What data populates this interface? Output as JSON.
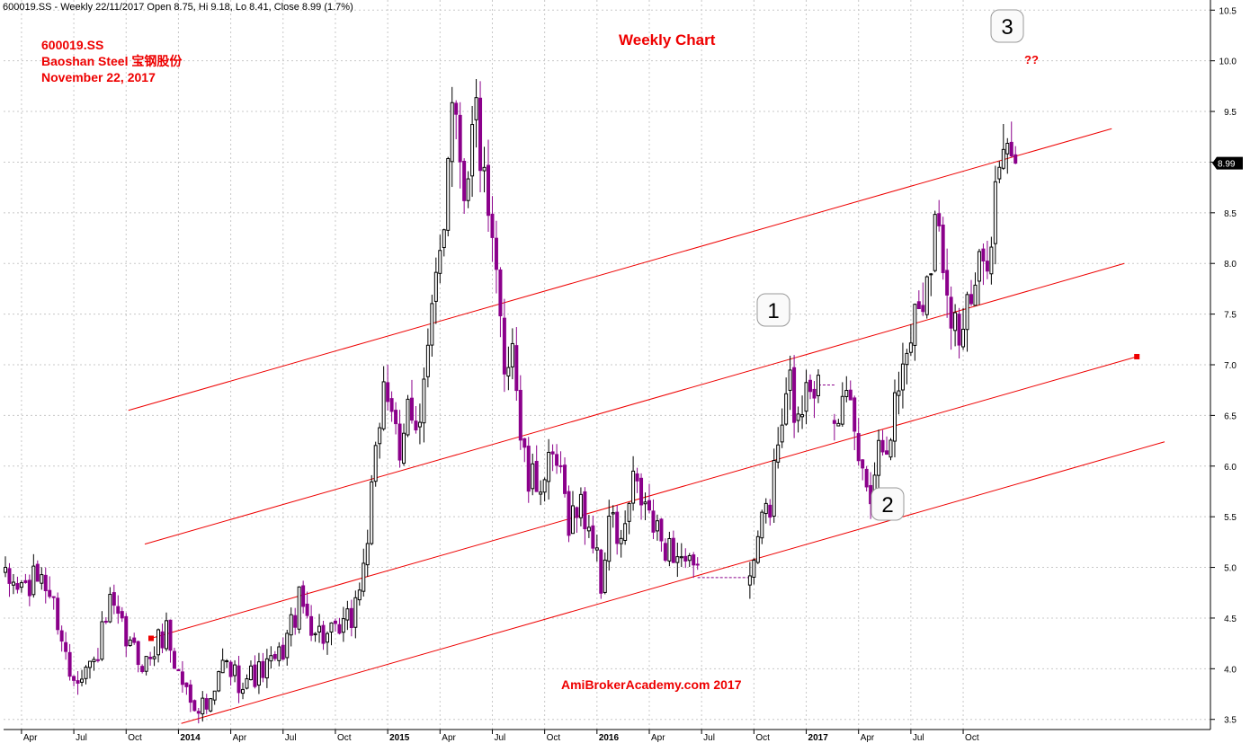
{
  "header": {
    "info": "600019.SS - Weekly 22/11/2017 Open 8.75, Hi 9.18, Lo 8.41, Close 8.99 (1.7%)"
  },
  "annotations": {
    "ticker": "600019.SS",
    "company": "Baoshan Steel 宝钢股份",
    "date": "November 22, 2017",
    "chart_title": "Weekly Chart",
    "watermark": "AmiBrokerAcademy.com 2017",
    "question": "??",
    "marker_1": "1",
    "marker_2": "2",
    "marker_3": "3",
    "last_price": "8.99"
  },
  "colors": {
    "channel": "#ee0000",
    "bear_candle": "#8b008b",
    "bull_candle": "#000000",
    "grid": "#c8c8c8"
  },
  "chart_data": {
    "type": "candlestick",
    "y_ticks": [
      "3.5",
      "4.0",
      "4.5",
      "5.0",
      "5.5",
      "6.0",
      "6.5",
      "7.0",
      "7.5",
      "8.0",
      "8.5",
      "9.0",
      "9.5",
      "10.0",
      "10.5"
    ],
    "ylim": [
      3.4,
      10.6
    ],
    "x_ticks": [
      {
        "label": "Apr",
        "i": 4,
        "bold": false
      },
      {
        "label": "Jul",
        "i": 17,
        "bold": false
      },
      {
        "label": "Oct",
        "i": 30,
        "bold": false
      },
      {
        "label": "2014",
        "i": 43,
        "bold": true
      },
      {
        "label": "Apr",
        "i": 56,
        "bold": false
      },
      {
        "label": "Jul",
        "i": 69,
        "bold": false
      },
      {
        "label": "Oct",
        "i": 82,
        "bold": false
      },
      {
        "label": "2015",
        "i": 95,
        "bold": true
      },
      {
        "label": "Apr",
        "i": 108,
        "bold": false
      },
      {
        "label": "Jul",
        "i": 121,
        "bold": false
      },
      {
        "label": "Oct",
        "i": 134,
        "bold": false
      },
      {
        "label": "2016",
        "i": 147,
        "bold": true
      },
      {
        "label": "Apr",
        "i": 160,
        "bold": false
      },
      {
        "label": "Jul",
        "i": 173,
        "bold": false
      },
      {
        "label": "Oct",
        "i": 186,
        "bold": false
      },
      {
        "label": "2017",
        "i": 199,
        "bold": true
      },
      {
        "label": "Apr",
        "i": 212,
        "bold": false
      },
      {
        "label": "Jul",
        "i": 225,
        "bold": false
      },
      {
        "label": "Oct",
        "i": 238,
        "bold": false
      }
    ],
    "weeks": 252,
    "halt_periods": [
      [
        172,
        185
      ],
      [
        202,
        206
      ]
    ],
    "close_anchors": [
      [
        0,
        4.85
      ],
      [
        6,
        4.8
      ],
      [
        9,
        4.95
      ],
      [
        13,
        4.5
      ],
      [
        16,
        3.95
      ],
      [
        22,
        4.05
      ],
      [
        26,
        4.6
      ],
      [
        31,
        4.2
      ],
      [
        35,
        4.05
      ],
      [
        40,
        4.4
      ],
      [
        42,
        4.05
      ],
      [
        46,
        3.7
      ],
      [
        51,
        3.6
      ],
      [
        54,
        4.05
      ],
      [
        58,
        3.9
      ],
      [
        63,
        3.95
      ],
      [
        68,
        4.1
      ],
      [
        73,
        4.65
      ],
      [
        78,
        4.35
      ],
      [
        82,
        4.3
      ],
      [
        86,
        4.5
      ],
      [
        89,
        5.0
      ],
      [
        92,
        6.0
      ],
      [
        94,
        6.9
      ],
      [
        96,
        6.6
      ],
      [
        98,
        5.9
      ],
      [
        100,
        6.6
      ],
      [
        103,
        6.5
      ],
      [
        106,
        7.4
      ],
      [
        109,
        8.5
      ],
      [
        111,
        9.8
      ],
      [
        114,
        8.8
      ],
      [
        117,
        9.5
      ],
      [
        120,
        8.3
      ],
      [
        122,
        7.8
      ],
      [
        124,
        7.0
      ],
      [
        126,
        7.3
      ],
      [
        128,
        6.3
      ],
      [
        130,
        5.8
      ],
      [
        134,
        5.9
      ],
      [
        137,
        6.0
      ],
      [
        140,
        5.5
      ],
      [
        143,
        5.6
      ],
      [
        146,
        5.3
      ],
      [
        148,
        4.8
      ],
      [
        150,
        5.5
      ],
      [
        153,
        5.2
      ],
      [
        156,
        5.8
      ],
      [
        159,
        5.6
      ],
      [
        162,
        5.3
      ],
      [
        165,
        5.2
      ],
      [
        168,
        5.1
      ],
      [
        171,
        4.9
      ],
      [
        186,
        4.9
      ],
      [
        188,
        5.6
      ],
      [
        190,
        5.6
      ],
      [
        192,
        6.2
      ],
      [
        195,
        6.8
      ],
      [
        197,
        6.4
      ],
      [
        199,
        6.9
      ],
      [
        202,
        6.8
      ],
      [
        207,
        6.6
      ],
      [
        210,
        6.5
      ],
      [
        213,
        5.9
      ],
      [
        215,
        5.8
      ],
      [
        217,
        6.2
      ],
      [
        220,
        6.4
      ],
      [
        223,
        7.0
      ],
      [
        226,
        7.5
      ],
      [
        228,
        7.7
      ],
      [
        231,
        8.4
      ],
      [
        233,
        8.1
      ],
      [
        235,
        7.6
      ],
      [
        237,
        7.3
      ],
      [
        240,
        7.6
      ],
      [
        243,
        8.0
      ],
      [
        245,
        8.4
      ],
      [
        247,
        8.99
      ]
    ],
    "channel_lines": [
      {
        "x1": 0.102,
        "y1": 6.55,
        "x2": 0.883,
        "y2": 9.33
      },
      {
        "x1": 0.115,
        "y1": 5.23,
        "x2": 0.893,
        "y2": 8.0
      },
      {
        "x1": 0.12,
        "y1": 4.3,
        "x2": 0.903,
        "y2": 7.08
      },
      {
        "x1": 0.144,
        "y1": 3.46,
        "x2": 0.925,
        "y2": 6.24
      }
    ],
    "channel_endpoints": [
      {
        "x": 0.12,
        "y": 4.3
      },
      {
        "x": 0.903,
        "y": 7.08
      }
    ]
  }
}
